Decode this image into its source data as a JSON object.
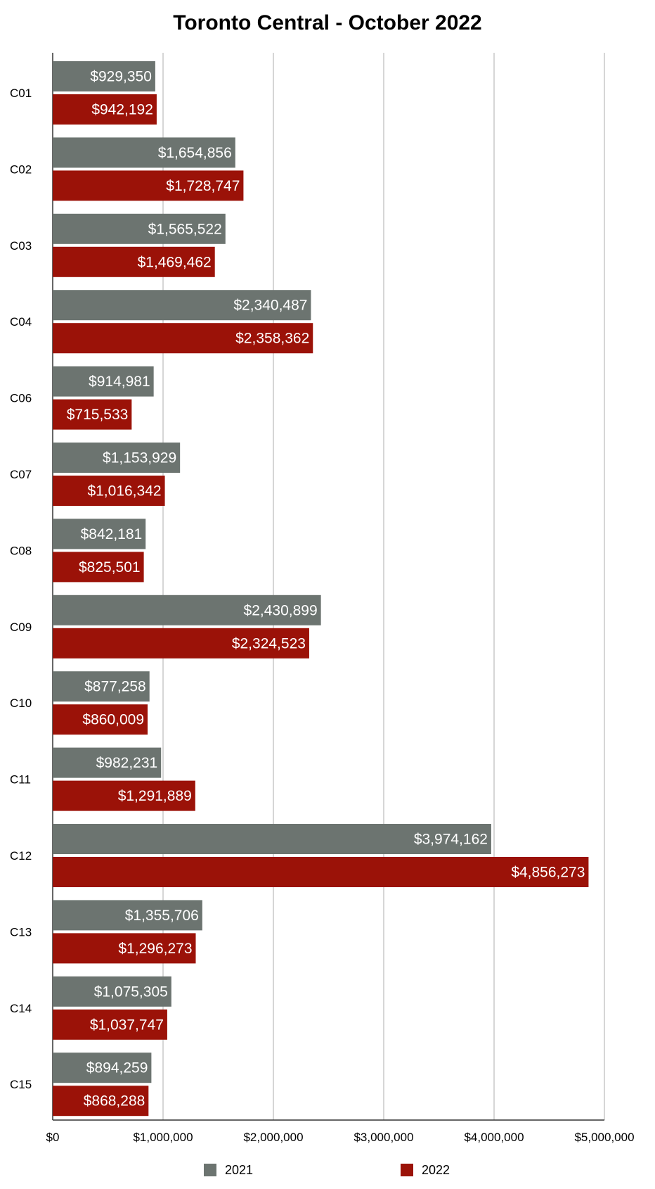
{
  "chart_data": {
    "type": "bar",
    "orientation": "horizontal",
    "title": "Toronto Central - October 2022",
    "xlabel": "",
    "ylabel": "",
    "xlim": [
      0,
      5000000
    ],
    "x_ticks": [
      0,
      1000000,
      2000000,
      3000000,
      4000000,
      5000000
    ],
    "x_tick_labels": [
      "$0",
      "$1,000,000",
      "$2,000,000",
      "$3,000,000",
      "$4,000,000",
      "$5,000,000"
    ],
    "grid": true,
    "legend_position": "bottom",
    "categories": [
      "C01",
      "C02",
      "C03",
      "C04",
      "C06",
      "C07",
      "C08",
      "C09",
      "C10",
      "C11",
      "C12",
      "C13",
      "C14",
      "C15"
    ],
    "series": [
      {
        "name": "2021",
        "color": "#6c7470",
        "values": [
          929350,
          1654856,
          1565522,
          2340487,
          914981,
          1153929,
          842181,
          2430899,
          877258,
          982231,
          3974162,
          1355706,
          1075305,
          894259
        ],
        "labels": [
          "$929,350",
          "$1,654,856",
          "$1,565,522",
          "$2,340,487",
          "$914,981",
          "$1,153,929",
          "$842,181",
          "$2,430,899",
          "$877,258",
          "$982,231",
          "$3,974,162",
          "$1,355,706",
          "$1,075,305",
          "$894,259"
        ]
      },
      {
        "name": "2022",
        "color": "#9b1208",
        "values": [
          942192,
          1728747,
          1469462,
          2358362,
          715533,
          1016342,
          825501,
          2324523,
          860009,
          1291889,
          4856273,
          1296273,
          1037747,
          868288
        ],
        "labels": [
          "$942,192",
          "$1,728,747",
          "$1,469,462",
          "$2,358,362",
          "$715,533",
          "$1,016,342",
          "$825,501",
          "$2,324,523",
          "$860,009",
          "$1,291,889",
          "$4,856,273",
          "$1,296,273",
          "$1,037,747",
          "$868,288"
        ]
      }
    ]
  }
}
